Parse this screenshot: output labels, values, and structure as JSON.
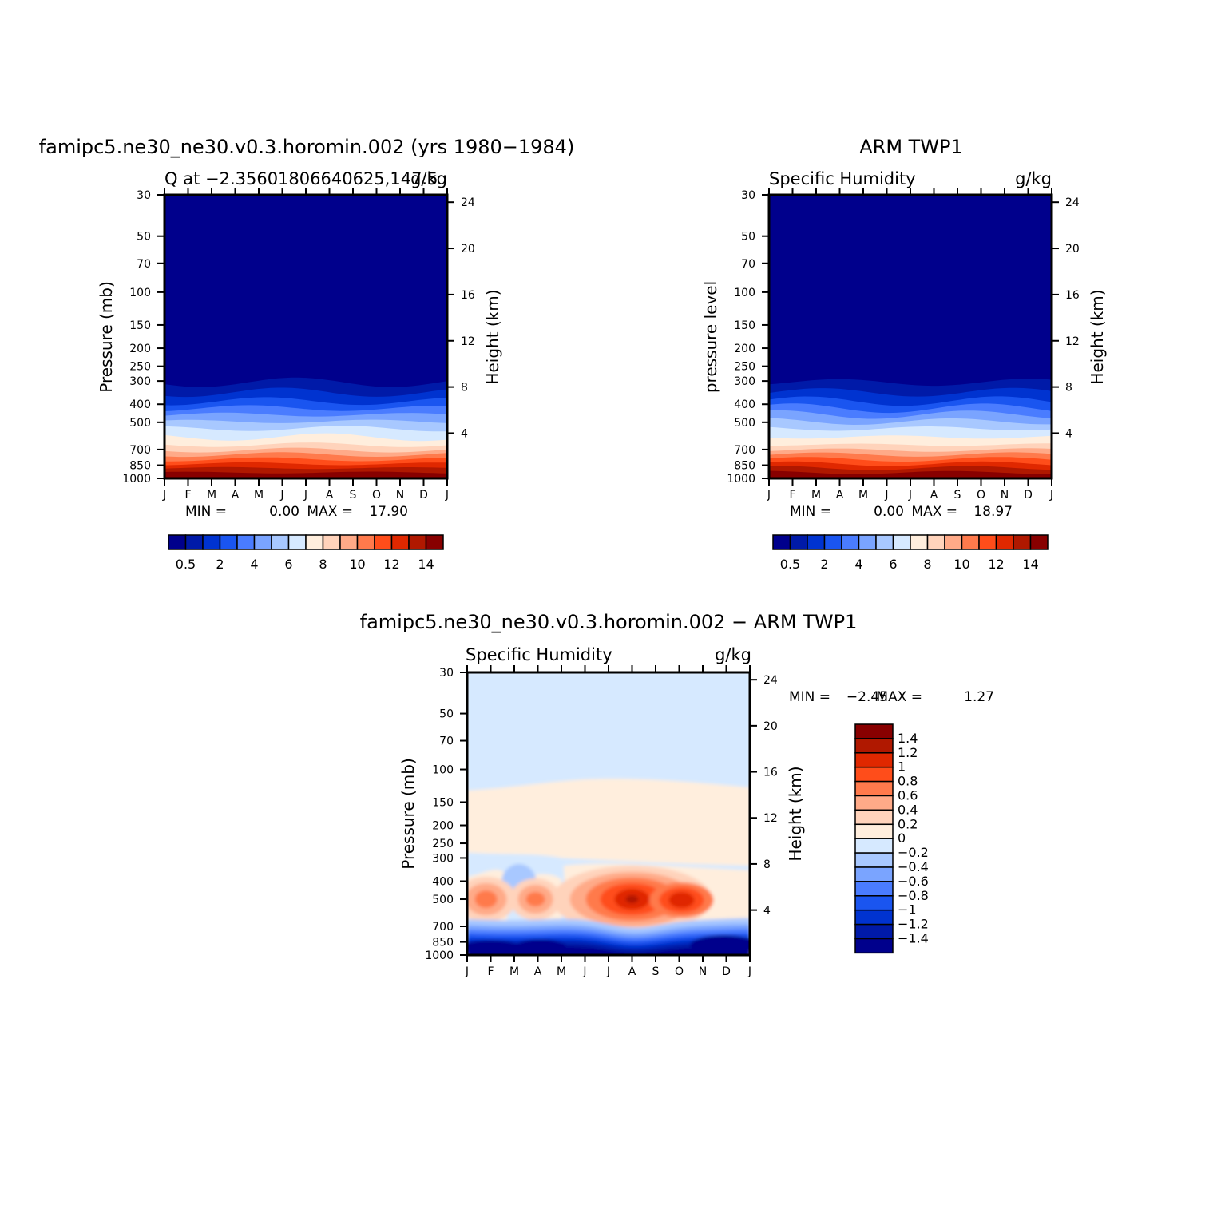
{
  "chart_data": [
    {
      "type": "heatmap",
      "title": "famipc5.ne30_ne30.v0.3.horomin.002 (yrs 1980−1984)",
      "subtitle_left": "Q at −2.35601806640625,147.5",
      "subtitle_right": "g/kg",
      "ylabel": "Pressure (mb)",
      "ylabel_right": "Height (km)",
      "x_ticks": [
        "J",
        "F",
        "M",
        "A",
        "M",
        "J",
        "J",
        "A",
        "S",
        "O",
        "N",
        "D",
        "J"
      ],
      "y_ticks": [
        "30",
        "50",
        "70",
        "100",
        "150",
        "200",
        "250",
        "300",
        "400",
        "500",
        "700",
        "850",
        "1000"
      ],
      "y_ticks_right": [
        "24",
        "20",
        "16",
        "12",
        "8",
        "4"
      ],
      "min_label": "MIN =",
      "min_value": "0.00",
      "max_label": "MAX =",
      "max_value": "17.90",
      "colorbar_labels": [
        "0.5",
        "2",
        "4",
        "6",
        "8",
        "10",
        "12",
        "14"
      ],
      "colors": [
        "#00008c",
        "#001aa8",
        "#0033d0",
        "#1a55f0",
        "#4a7cff",
        "#7aa4ff",
        "#a8c8ff",
        "#d6e9ff",
        "#ffeedd",
        "#ffd3bb",
        "#ffaa88",
        "#ff7a4c",
        "#ff4d1a",
        "#e02800",
        "#b01800",
        "#880000"
      ],
      "values": [
        {
          "pressure": 1000,
          "q": 17.9
        },
        {
          "pressure": 950,
          "q": 15.5
        },
        {
          "pressure": 850,
          "q": 12.5
        },
        {
          "pressure": 700,
          "q": 8.5
        },
        {
          "pressure": 600,
          "q": 6.2
        },
        {
          "pressure": 500,
          "q": 4.0
        },
        {
          "pressure": 400,
          "q": 2.0
        },
        {
          "pressure": 300,
          "q": 0.5
        },
        {
          "pressure": 200,
          "q": 0.05
        },
        {
          "pressure": 100,
          "q": 0.0
        },
        {
          "pressure": 30,
          "q": 0.0
        }
      ]
    },
    {
      "type": "heatmap",
      "title": "ARM TWP1",
      "subtitle_left": "Specific Humidity",
      "subtitle_right": "g/kg",
      "ylabel": "pressure level",
      "ylabel_right": "Height (km)",
      "x_ticks": [
        "J",
        "F",
        "M",
        "A",
        "M",
        "J",
        "J",
        "A",
        "S",
        "O",
        "N",
        "D",
        "J"
      ],
      "y_ticks": [
        "30",
        "50",
        "70",
        "100",
        "150",
        "200",
        "250",
        "300",
        "400",
        "500",
        "700",
        "850",
        "1000"
      ],
      "y_ticks_right": [
        "24",
        "20",
        "16",
        "12",
        "8",
        "4"
      ],
      "min_label": "MIN =",
      "min_value": "0.00",
      "max_label": "MAX =",
      "max_value": "18.97",
      "colorbar_labels": [
        "0.5",
        "2",
        "4",
        "6",
        "8",
        "10",
        "12",
        "14"
      ],
      "colors": [
        "#00008c",
        "#001aa8",
        "#0033d0",
        "#1a55f0",
        "#4a7cff",
        "#7aa4ff",
        "#a8c8ff",
        "#d6e9ff",
        "#ffeedd",
        "#ffd3bb",
        "#ffaa88",
        "#ff7a4c",
        "#ff4d1a",
        "#e02800",
        "#b01800",
        "#880000"
      ],
      "values": [
        {
          "pressure": 1000,
          "q": 18.97
        },
        {
          "pressure": 950,
          "q": 16.0
        },
        {
          "pressure": 850,
          "q": 13.0
        },
        {
          "pressure": 700,
          "q": 8.8
        },
        {
          "pressure": 600,
          "q": 6.5
        },
        {
          "pressure": 500,
          "q": 4.3
        },
        {
          "pressure": 400,
          "q": 2.3
        },
        {
          "pressure": 300,
          "q": 0.6
        },
        {
          "pressure": 200,
          "q": 0.05
        },
        {
          "pressure": 100,
          "q": 0.0
        },
        {
          "pressure": 30,
          "q": 0.0
        }
      ]
    },
    {
      "type": "heatmap",
      "title": "famipc5.ne30_ne30.v0.3.horomin.002 − ARM TWP1",
      "subtitle_left": "Specific Humidity",
      "subtitle_right": "g/kg",
      "ylabel": "Pressure (mb)",
      "ylabel_right": "Height (km)",
      "x_ticks": [
        "J",
        "F",
        "M",
        "A",
        "M",
        "J",
        "J",
        "A",
        "S",
        "O",
        "N",
        "D",
        "J"
      ],
      "y_ticks": [
        "30",
        "50",
        "70",
        "100",
        "150",
        "200",
        "250",
        "300",
        "400",
        "500",
        "700",
        "850",
        "1000"
      ],
      "y_ticks_right": [
        "24",
        "20",
        "16",
        "12",
        "8",
        "4"
      ],
      "min_label": "MIN =",
      "min_value": "−2.45",
      "max_label": "MAX =",
      "max_value": "1.27",
      "colorbar_labels": [
        "1.4",
        "1.2",
        "1",
        "0.8",
        "0.6",
        "0.4",
        "0.2",
        "0",
        "−0.2",
        "−0.4",
        "−0.6",
        "−0.8",
        "−1",
        "−1.2",
        "−1.4"
      ],
      "colors": [
        "#880000",
        "#b01800",
        "#e02800",
        "#ff4d1a",
        "#ff7a4c",
        "#ffaa88",
        "#ffd3bb",
        "#ffeedd",
        "#d6e9ff",
        "#a8c8ff",
        "#7aa4ff",
        "#4a7cff",
        "#1a55f0",
        "#0033d0",
        "#001aa8",
        "#00008c"
      ],
      "features": [
        {
          "month": "Aug",
          "pressure": 500,
          "diff": 1.27
        },
        {
          "month": "Oct",
          "pressure": 500,
          "diff": 1.0
        },
        {
          "month": "Jan",
          "pressure": 500,
          "diff": 0.5
        },
        {
          "month": "Apr",
          "pressure": 500,
          "diff": 0.4
        },
        {
          "month": "Mar",
          "pressure": 400,
          "diff": -0.4
        },
        {
          "month": "Mar",
          "pressure": 900,
          "diff": -2.45
        },
        {
          "month": "Dec",
          "pressure": 900,
          "diff": -2.0
        },
        {
          "month": "all",
          "pressure": 200,
          "diff": 0.1
        },
        {
          "month": "all",
          "pressure": 30,
          "diff": -0.1
        }
      ]
    }
  ]
}
